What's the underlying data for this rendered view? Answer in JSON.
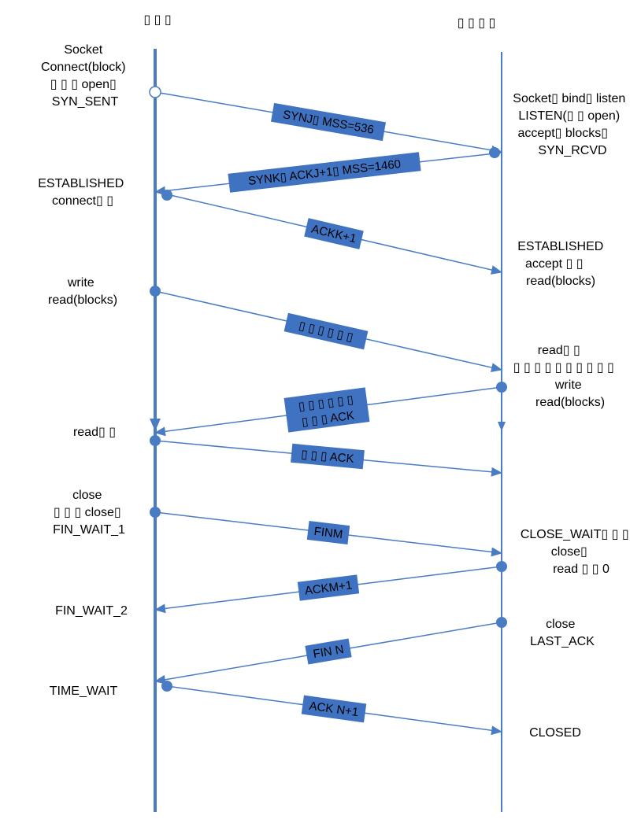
{
  "colors": {
    "line": "#4a7cc4",
    "label_bg": "#3f73c2",
    "text": "#000000"
  },
  "client": {
    "title": "▯ ▯ ▯",
    "states": [
      {
        "lines": [
          "Socket",
          "Connect(block)",
          "▯ ▯ ▯ open▯",
          "SYN_SENT"
        ]
      },
      {
        "lines": [
          "ESTABLISHED",
          "connect▯ ▯"
        ]
      },
      {
        "lines": [
          "write",
          "read(blocks)"
        ]
      },
      {
        "lines": [
          "read▯ ▯"
        ]
      },
      {
        "lines": [
          "close",
          "▯ ▯ ▯ close▯",
          "FIN_WAIT_1"
        ]
      },
      {
        "lines": [
          "FIN_WAIT_2"
        ]
      },
      {
        "lines": [
          "TIME_WAIT"
        ]
      }
    ]
  },
  "server": {
    "title": "▯ ▯ ▯ ▯",
    "states": [
      {
        "lines": [
          "Socket▯ bind▯ listen",
          "LISTEN(▯ ▯ open)",
          "accept▯ blocks▯",
          "SYN_RCVD"
        ]
      },
      {
        "lines": [
          "ESTABLISHED",
          "accept ▯ ▯",
          "read(blocks)"
        ]
      },
      {
        "lines": [
          "read▯ ▯",
          "▯ ▯ ▯ ▯ ▯ ▯ ▯ ▯ ▯ ▯",
          "write",
          "read(blocks)"
        ]
      },
      {
        "lines": [
          "CLOSE_WAIT▯ ▯ ▯",
          "close▯",
          "read ▯ ▯ 0"
        ]
      },
      {
        "lines": [
          "close",
          "LAST_ACK"
        ]
      },
      {
        "lines": [
          "CLOSED"
        ]
      }
    ]
  },
  "messages": [
    {
      "lines": [
        "SYNJ▯ MSS=536"
      ]
    },
    {
      "lines": [
        "SYNK▯ ACKJ+1▯ MSS=1460"
      ]
    },
    {
      "lines": [
        "ACKK+1"
      ]
    },
    {
      "lines": [
        "▯ ▯ ▯ ▯ ▯ ▯"
      ]
    },
    {
      "lines": [
        "▯ ▯ ▯ ▯ ▯ ▯",
        "▯ ▯ ▯ ACK"
      ]
    },
    {
      "lines": [
        "▯ ▯ ▯ ACK"
      ]
    },
    {
      "lines": [
        "FINM"
      ]
    },
    {
      "lines": [
        "ACKM+1"
      ]
    },
    {
      "lines": [
        "FIN N"
      ]
    },
    {
      "lines": [
        "ACK N+1"
      ]
    }
  ]
}
